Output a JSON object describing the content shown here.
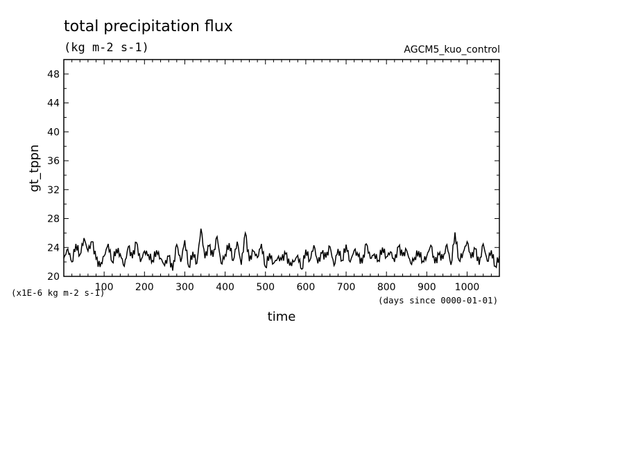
{
  "chart_data": {
    "type": "line",
    "title": "total precipitation flux",
    "units_label": "(kg m-2 s-1)",
    "experiment": "AGCM5_kuo_control",
    "ylabel": "gt_tppn",
    "xlabel": "time",
    "y_scale_note": "(x1E-6 kg m-2 s-1)",
    "x_units_note": "(days since 0000-01-01)",
    "xlim": [
      0,
      1080
    ],
    "ylim": [
      20,
      50
    ],
    "x_ticks": [
      100,
      200,
      300,
      400,
      500,
      600,
      700,
      800,
      900,
      1000
    ],
    "y_ticks": [
      20,
      24,
      28,
      32,
      36,
      40,
      44,
      48
    ],
    "grid": false,
    "series": [
      {
        "x": [
          0,
          10,
          20,
          30,
          40,
          50,
          60,
          70,
          80,
          90,
          100,
          110,
          120,
          130,
          140,
          150,
          160,
          170,
          180,
          190,
          200,
          210,
          220,
          230,
          240,
          250,
          260,
          270,
          280,
          290,
          300,
          310,
          320,
          330,
          340,
          350,
          360,
          370,
          380,
          390,
          400,
          410,
          420,
          430,
          440,
          450,
          460,
          470,
          480,
          490,
          500,
          510,
          520,
          530,
          540,
          550,
          560,
          570,
          580,
          590,
          600,
          610,
          620,
          630,
          640,
          650,
          660,
          670,
          680,
          690,
          700,
          710,
          720,
          730,
          740,
          750,
          760,
          770,
          780,
          790,
          800,
          810,
          820,
          830,
          840,
          850,
          860,
          870,
          880,
          890,
          900,
          910,
          920,
          930,
          940,
          950,
          960,
          970,
          980,
          990,
          1000,
          1010,
          1020,
          1030,
          1040,
          1050,
          1060,
          1070,
          1080
        ],
        "values": [
          22.5,
          23.8,
          22.0,
          24.5,
          23.0,
          25.3,
          23.5,
          24.8,
          22.4,
          21.3,
          22.8,
          24.5,
          22.0,
          23.8,
          23.1,
          21.4,
          24.1,
          22.5,
          24.7,
          22.0,
          23.5,
          23.0,
          22.2,
          23.6,
          22.5,
          21.5,
          22.8,
          20.8,
          24.4,
          22.0,
          25.0,
          21.3,
          23.4,
          21.8,
          26.6,
          22.5,
          24.2,
          22.7,
          25.5,
          21.8,
          23.0,
          24.6,
          22.2,
          24.8,
          21.6,
          26.0,
          22.1,
          23.5,
          22.6,
          24.5,
          21.3,
          23.2,
          21.8,
          22.5,
          22.3,
          23.1,
          21.5,
          22.0,
          22.9,
          21.0,
          23.7,
          22.2,
          24.3,
          21.8,
          23.2,
          22.6,
          24.1,
          21.5,
          23.8,
          22.2,
          24.4,
          22.0,
          23.6,
          22.8,
          21.8,
          24.5,
          22.5,
          23.1,
          22.2,
          24.0,
          22.7,
          23.4,
          22.0,
          24.1,
          22.8,
          23.6,
          21.8,
          22.6,
          23.5,
          22.1,
          22.8,
          24.3,
          21.8,
          23.0,
          22.4,
          24.4,
          21.6,
          26.1,
          22.2,
          23.3,
          24.8,
          22.5,
          23.8,
          21.6,
          24.5,
          22.1,
          23.6,
          21.4,
          22.8
        ]
      }
    ]
  }
}
